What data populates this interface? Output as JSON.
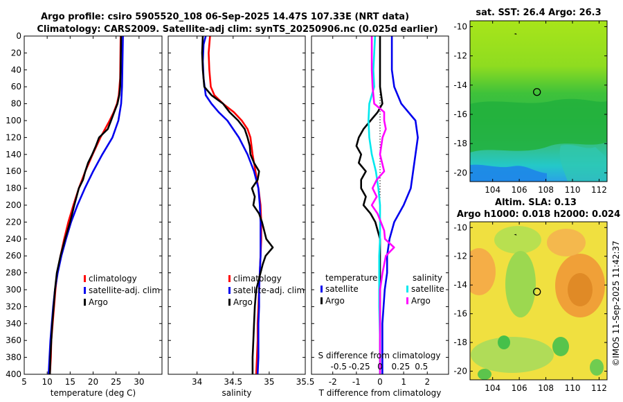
{
  "chart_data": {
    "type": "line",
    "title_line1": "Argo profile: csiro 5905520_108 06-Sep-2025 14.47S 107.33E (NRT data)",
    "title_line2": "Climatology: CARS2009. Satellite-adj clim: synTS_20250906.nc (0.025d earlier)",
    "depth_ticks": [
      "0",
      "20",
      "40",
      "60",
      "80",
      "100",
      "120",
      "140",
      "160",
      "180",
      "200",
      "220",
      "240",
      "260",
      "280",
      "300",
      "320",
      "340",
      "360",
      "380",
      "400"
    ],
    "depth_range": [
      0,
      400
    ],
    "panels": {
      "temperature": {
        "xlabel": "temperature (deg C)",
        "xlim": [
          5,
          35
        ],
        "xticks": [
          "5",
          "10",
          "15",
          "20",
          "25",
          "30"
        ],
        "xtick_values": [
          5,
          10,
          15,
          20,
          25,
          30
        ],
        "legend": [
          "climatology",
          "satellite-adj. clim",
          "Argo"
        ],
        "series": [
          {
            "name": "climatology",
            "color": "#ff0000",
            "depth": [
              0,
              50,
              70,
              80,
              90,
              100,
              110,
              120,
              140,
              160,
              180,
              200,
              220,
              240,
              260,
              280,
              300,
              320,
              340,
              360,
              380,
              400
            ],
            "values": [
              26.0,
              25.9,
              25.6,
              25.2,
              24.5,
              23.6,
              22.6,
              21.6,
              19.9,
              18.3,
              16.9,
              15.7,
              14.6,
              13.7,
              12.9,
              12.2,
              11.8,
              11.5,
              11.2,
              10.9,
              10.8,
              10.6
            ]
          },
          {
            "name": "satellite-adj. clim",
            "color": "#0000ee",
            "depth": [
              0,
              60,
              80,
              100,
              120,
              140,
              160,
              180,
              200,
              220,
              240,
              260,
              280,
              300,
              320,
              340,
              360,
              380,
              400
            ],
            "values": [
              26.5,
              26.3,
              26.1,
              25.5,
              24.2,
              22.0,
              20.0,
              18.2,
              16.6,
              15.2,
              14.1,
              13.1,
              12.3,
              11.7,
              11.3,
              11.0,
              10.7,
              10.5,
              10.3
            ]
          },
          {
            "name": "Argo",
            "color": "#000000",
            "depth": [
              0,
              40,
              60,
              70,
              80,
              90,
              100,
              110,
              120,
              130,
              140,
              150,
              160,
              170,
              180,
              190,
              200,
              220,
              240,
              260,
              280,
              300,
              320,
              340,
              360,
              380,
              400
            ],
            "values": [
              26.1,
              26.0,
              25.9,
              25.7,
              25.3,
              24.6,
              23.9,
              23.2,
              21.3,
              20.6,
              19.8,
              18.9,
              18.3,
              17.8,
              16.9,
              16.4,
              15.9,
              15.0,
              13.9,
              12.9,
              12.1,
              11.7,
              11.4,
              11.1,
              10.9,
              10.7,
              10.6
            ]
          }
        ]
      },
      "salinity": {
        "xlabel": "salinity",
        "xlim": [
          33.6,
          35.5
        ],
        "xticks": [
          "34",
          "34.5",
          "35",
          "35.5"
        ],
        "xtick_values": [
          34.0,
          34.5,
          35.0,
          35.5
        ],
        "legend": [
          "climatology",
          "satellite-adj. clim",
          "Argo"
        ],
        "series": [
          {
            "name": "climatology",
            "color": "#ff0000",
            "depth": [
              0,
              20,
              40,
              60,
              70,
              80,
              90,
              100,
              110,
              120,
              140,
              160,
              180,
              200,
              220,
              240,
              260,
              280,
              300,
              320,
              340,
              360,
              380,
              400
            ],
            "values": [
              34.18,
              34.16,
              34.17,
              34.19,
              34.24,
              34.36,
              34.51,
              34.62,
              34.7,
              34.74,
              34.77,
              34.81,
              34.85,
              34.88,
              34.89,
              34.89,
              34.88,
              34.87,
              34.86,
              34.85,
              34.84,
              34.84,
              34.83,
              34.82
            ]
          },
          {
            "name": "satellite-adj. clim",
            "color": "#0000ee",
            "depth": [
              0,
              10,
              30,
              50,
              70,
              80,
              90,
              100,
              120,
              140,
              160,
              180,
              200,
              220,
              240,
              260,
              280,
              300,
              320,
              340,
              360,
              380,
              400
            ],
            "values": [
              34.12,
              34.09,
              34.08,
              34.09,
              34.12,
              34.2,
              34.3,
              34.42,
              34.58,
              34.7,
              34.79,
              34.85,
              34.87,
              34.88,
              34.88,
              34.88,
              34.87,
              34.86,
              34.86,
              34.85,
              34.85,
              34.85,
              34.84
            ]
          },
          {
            "name": "Argo",
            "color": "#000000",
            "depth": [
              0,
              20,
              40,
              60,
              70,
              80,
              90,
              100,
              110,
              120,
              130,
              140,
              150,
              160,
              170,
              180,
              190,
              200,
              210,
              220,
              230,
              240,
              250,
              260,
              270,
              280,
              290,
              300,
              320,
              340,
              360,
              380,
              400
            ],
            "values": [
              34.08,
              34.07,
              34.08,
              34.1,
              34.2,
              34.36,
              34.45,
              34.57,
              34.66,
              34.7,
              34.73,
              34.74,
              34.79,
              34.86,
              34.84,
              34.76,
              34.8,
              34.78,
              34.86,
              34.9,
              34.93,
              34.96,
              35.05,
              34.95,
              34.91,
              34.88,
              34.85,
              34.82,
              34.8,
              34.79,
              34.78,
              34.77,
              34.77
            ]
          }
        ]
      },
      "difference": {
        "xlabel": "T difference from climatology",
        "xlabel_top": "S difference from climatology",
        "xlim": [
          -2.9,
          2.9
        ],
        "xticks": [
          "-2",
          "-1",
          "0",
          "1",
          "2"
        ],
        "xtick_values": [
          -2,
          -1,
          0,
          1,
          2
        ],
        "s_ticks": [
          "-0.5",
          "-0.25",
          "0",
          "0.25",
          "0.5"
        ],
        "s_tick_values": [
          -0.5,
          -0.25,
          0,
          0.25,
          0.5
        ],
        "legend_t_header": "temperature",
        "legend_s_header": "salinity",
        "legend_t": [
          "satellite",
          "Argo"
        ],
        "legend_s": [
          "satellite",
          "Argo"
        ],
        "series": [
          {
            "name": "T satellite",
            "color": "#0000ee",
            "units": "T",
            "depth": [
              0,
              40,
              60,
              80,
              100,
              120,
              140,
              160,
              180,
              200,
              220,
              240,
              260,
              280,
              300,
              340,
              380,
              400
            ],
            "values": [
              0.5,
              0.5,
              0.6,
              0.9,
              1.5,
              1.6,
              1.5,
              1.4,
              1.3,
              1.0,
              0.6,
              0.4,
              0.3,
              0.3,
              0.2,
              0.1,
              0.1,
              0.1
            ]
          },
          {
            "name": "T Argo",
            "color": "#000000",
            "units": "T",
            "depth": [
              0,
              60,
              80,
              90,
              100,
              110,
              120,
              130,
              140,
              150,
              160,
              170,
              180,
              190,
              200,
              210,
              220,
              240,
              260,
              280,
              300,
              320,
              360,
              400
            ],
            "values": [
              0.0,
              0.0,
              0.1,
              -0.1,
              -0.4,
              -0.7,
              -0.9,
              -1.0,
              -0.8,
              -0.9,
              -0.6,
              -0.8,
              -0.8,
              -0.6,
              -0.7,
              -0.4,
              -0.2,
              0.0,
              0.0,
              0.0,
              0.0,
              0.0,
              0.0,
              0.0
            ]
          },
          {
            "name": "S satellite",
            "color": "#00e8ee",
            "units": "S",
            "depth": [
              0,
              40,
              60,
              80,
              100,
              120,
              140,
              160,
              180,
              200,
              220,
              240,
              260,
              280,
              300,
              320,
              360,
              400
            ],
            "values": [
              -0.06,
              -0.08,
              -0.07,
              -0.13,
              -0.14,
              -0.13,
              -0.1,
              -0.05,
              -0.02,
              0.0,
              0.0,
              0.0,
              -0.01,
              -0.01,
              -0.01,
              -0.01,
              0.0,
              0.0
            ]
          },
          {
            "name": "S Argo",
            "color": "#ff00ff",
            "units": "S",
            "depth": [
              0,
              40,
              60,
              80,
              90,
              100,
              110,
              120,
              140,
              160,
              170,
              180,
              190,
              200,
              210,
              220,
              230,
              240,
              250,
              260,
              280,
              300,
              320,
              400
            ],
            "values": [
              -0.1,
              -0.1,
              -0.09,
              -0.07,
              0.05,
              0.05,
              0.07,
              0.03,
              0.0,
              0.05,
              -0.04,
              -0.09,
              -0.04,
              -0.1,
              -0.03,
              0.01,
              0.05,
              0.06,
              0.17,
              0.07,
              0.03,
              0.0,
              0.0,
              0.0
            ]
          }
        ]
      }
    },
    "maps": {
      "sst": {
        "title": "sat. SST: 26.4 Argo: 26.3",
        "yticks": [
          "-10",
          "-12",
          "-14",
          "-16",
          "-18",
          "-20"
        ],
        "ytick_values": [
          -10,
          -12,
          -14,
          -16,
          -18,
          -20
        ],
        "xticks": [
          "104",
          "106",
          "108",
          "110",
          "112"
        ],
        "xtick_values": [
          104,
          106,
          108,
          110,
          112
        ],
        "lon_range": [
          102.3,
          112.6
        ],
        "lat_range": [
          -20.6,
          -9.6
        ]
      },
      "sla": {
        "title_line1": "Altim. SLA: 0.13",
        "title_line2": "Argo h1000: 0.018 h2000: 0.024",
        "yticks": [
          "-10",
          "-12",
          "-14",
          "-16",
          "-18",
          "-20"
        ],
        "ytick_values": [
          -10,
          -12,
          -14,
          -16,
          -18,
          -20
        ],
        "xticks": [
          "104",
          "106",
          "108",
          "110",
          "112"
        ],
        "xtick_values": [
          104,
          106,
          108,
          110,
          112
        ],
        "lon_range": [
          102.3,
          112.6
        ],
        "lat_range": [
          -20.6,
          -9.6
        ]
      }
    },
    "argo_position": {
      "lon": 107.33,
      "lat": -14.47
    },
    "credit": "©IMOS 11-Sep-2025 11:42:37"
  }
}
